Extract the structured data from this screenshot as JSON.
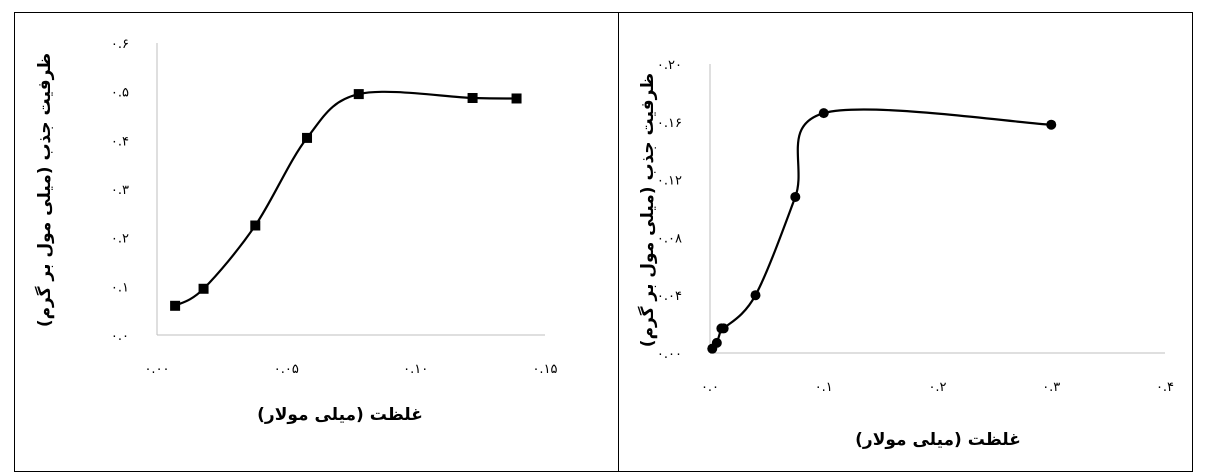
{
  "chart_data": [
    {
      "type": "line",
      "xlabel": "غلظت (میلی مولار)",
      "ylabel": "ظرفیت جذب (میلی مول بر گرم)",
      "xlim": [
        0.0,
        0.15
      ],
      "ylim": [
        0.0,
        0.6
      ],
      "x_ticks": [
        0.0,
        0.05,
        0.1,
        0.15
      ],
      "x_tick_labels": [
        "۰.۰۰",
        "۰.۰۵",
        "۰.۱۰",
        "۰.۱۵"
      ],
      "y_ticks": [
        0.0,
        0.1,
        0.2,
        0.3,
        0.4,
        0.5,
        0.6
      ],
      "y_tick_labels": [
        "۰.۰",
        "۰.۱",
        "۰.۲",
        "۰.۳",
        "۰.۴",
        "۰.۵",
        "۰.۶"
      ],
      "marker": "square",
      "smooth": true,
      "grid": false,
      "series": [
        {
          "x": [
            0.007,
            0.018,
            0.038,
            0.058,
            0.078,
            0.122,
            0.139
          ],
          "y": [
            0.06,
            0.095,
            0.225,
            0.405,
            0.495,
            0.487,
            0.486
          ]
        }
      ]
    },
    {
      "type": "line",
      "xlabel": "غلظت (میلی مولار)",
      "ylabel": "ظرفیت جذب (میلی مول بر گرم)",
      "xlim": [
        0.0,
        0.4
      ],
      "ylim": [
        0.0,
        0.2
      ],
      "x_ticks": [
        0.0,
        0.1,
        0.2,
        0.3,
        0.4
      ],
      "x_tick_labels": [
        "۰.۰",
        "۰.۱",
        "۰.۲",
        "۰.۳",
        "۰.۴"
      ],
      "y_ticks": [
        0.0,
        0.04,
        0.08,
        0.12,
        0.16,
        0.2
      ],
      "y_tick_labels": [
        "۰.۰۰",
        "۰.۰۴",
        "۰.۰۸",
        "۰.۱۲",
        "۰.۱۶",
        "۰.۲۰"
      ],
      "marker": "circle",
      "smooth": true,
      "grid": false,
      "series": [
        {
          "x": [
            0.002,
            0.006,
            0.01,
            0.012,
            0.04,
            0.075,
            0.1,
            0.3
          ],
          "y": [
            0.003,
            0.007,
            0.017,
            0.017,
            0.04,
            0.108,
            0.166,
            0.158
          ]
        }
      ]
    }
  ]
}
